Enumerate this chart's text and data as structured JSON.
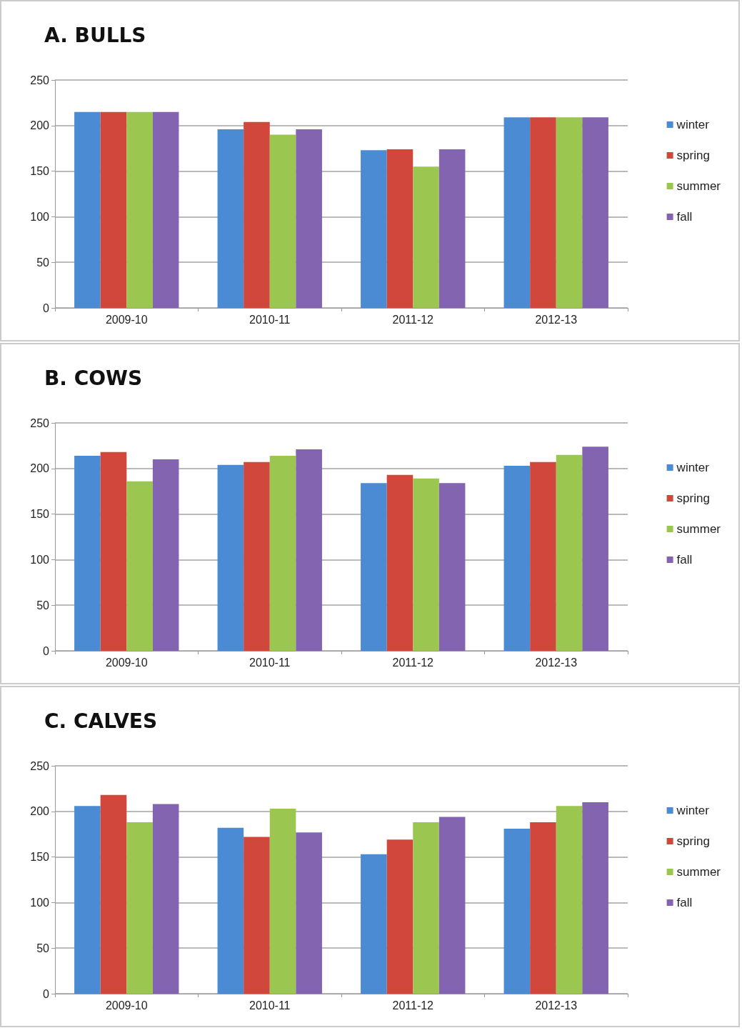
{
  "chart_data": [
    {
      "type": "bar",
      "title": "A. BULLS",
      "categories": [
        "2009-10",
        "2010-11",
        "2011-12",
        "2012-13"
      ],
      "series": [
        {
          "name": "winter",
          "color": "#4a8bd3",
          "values": [
            215,
            196,
            173,
            209
          ]
        },
        {
          "name": "spring",
          "color": "#d2473c",
          "values": [
            215,
            204,
            174,
            209
          ]
        },
        {
          "name": "summer",
          "color": "#9bc64f",
          "values": [
            215,
            190,
            155,
            209
          ]
        },
        {
          "name": "fall",
          "color": "#8264b0",
          "values": [
            215,
            196,
            174,
            209
          ]
        }
      ],
      "ylim": [
        0,
        250
      ],
      "yticks": [
        0,
        50,
        100,
        150,
        200,
        250
      ],
      "grid": "y",
      "legend": "right"
    },
    {
      "type": "bar",
      "title": "B. COWS",
      "categories": [
        "2009-10",
        "2010-11",
        "2011-12",
        "2012-13"
      ],
      "series": [
        {
          "name": "winter",
          "color": "#4a8bd3",
          "values": [
            214,
            204,
            184,
            203
          ]
        },
        {
          "name": "spring",
          "color": "#d2473c",
          "values": [
            218,
            207,
            193,
            207
          ]
        },
        {
          "name": "summer",
          "color": "#9bc64f",
          "values": [
            186,
            214,
            189,
            215
          ]
        },
        {
          "name": "fall",
          "color": "#8264b0",
          "values": [
            210,
            221,
            184,
            224
          ]
        }
      ],
      "ylim": [
        0,
        250
      ],
      "yticks": [
        0,
        50,
        100,
        150,
        200,
        250
      ],
      "grid": "y",
      "legend": "right"
    },
    {
      "type": "bar",
      "title": "C. CALVES",
      "categories": [
        "2009-10",
        "2010-11",
        "2011-12",
        "2012-13"
      ],
      "series": [
        {
          "name": "winter",
          "color": "#4a8bd3",
          "values": [
            206,
            182,
            153,
            181
          ]
        },
        {
          "name": "spring",
          "color": "#d2473c",
          "values": [
            218,
            172,
            169,
            188
          ]
        },
        {
          "name": "summer",
          "color": "#9bc64f",
          "values": [
            188,
            203,
            188,
            206
          ]
        },
        {
          "name": "fall",
          "color": "#8264b0",
          "values": [
            208,
            177,
            194,
            210
          ]
        }
      ],
      "ylim": [
        0,
        250
      ],
      "yticks": [
        0,
        50,
        100,
        150,
        200,
        250
      ],
      "grid": "y",
      "legend": "right"
    }
  ]
}
